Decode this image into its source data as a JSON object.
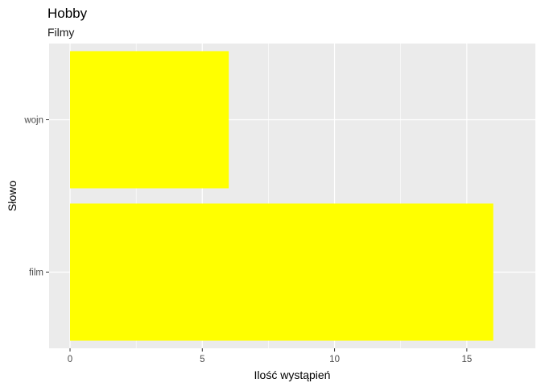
{
  "chart_data": {
    "type": "bar",
    "orientation": "horizontal",
    "title": "Hobby",
    "subtitle": "Filmy",
    "xlabel": "Ilość wystąpień",
    "ylabel": "Słowo",
    "categories": [
      "film",
      "wojn"
    ],
    "values": [
      16,
      6
    ],
    "xlim": [
      0,
      16.8
    ],
    "x_ticks": [
      0,
      5,
      10,
      15
    ],
    "bar_color": "#FFFF00",
    "panel_background": "#EBEBEB",
    "grid": true,
    "legend": "none"
  }
}
